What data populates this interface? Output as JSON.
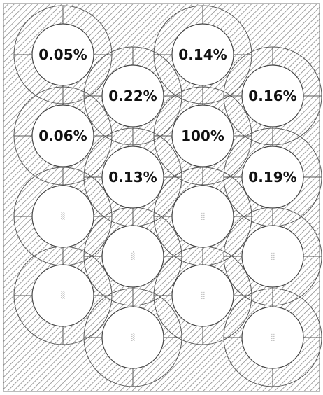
{
  "colors": {
    "background": "#ffffff",
    "hatch": "#8a8a8a",
    "ring_stroke": "#555555",
    "disk_fill": "#ffffff",
    "crosshair": "#555555",
    "label_text": "#111111",
    "cell_glyph": "#888888"
  },
  "cells": [
    {
      "id": "r1c1",
      "value": "0.05%"
    },
    {
      "id": "r1c3",
      "value": "0.14%"
    },
    {
      "id": "r2c2",
      "value": "0.22%"
    },
    {
      "id": "r2c4",
      "value": "0.16%"
    },
    {
      "id": "r3c1",
      "value": "0.06%"
    },
    {
      "id": "r3c3",
      "value": "100%"
    },
    {
      "id": "r4c2",
      "value": "0.13%"
    },
    {
      "id": "r4c4",
      "value": "0.19%"
    },
    {
      "id": "r5c1",
      "value": ""
    },
    {
      "id": "r5c3",
      "value": ""
    },
    {
      "id": "r6c2",
      "value": ""
    },
    {
      "id": "r6c4",
      "value": ""
    },
    {
      "id": "r7c1",
      "value": ""
    },
    {
      "id": "r7c3",
      "value": ""
    },
    {
      "id": "r8c2",
      "value": ""
    },
    {
      "id": "r8c4",
      "value": ""
    }
  ],
  "unlabeled_cell_glyph": "░"
}
